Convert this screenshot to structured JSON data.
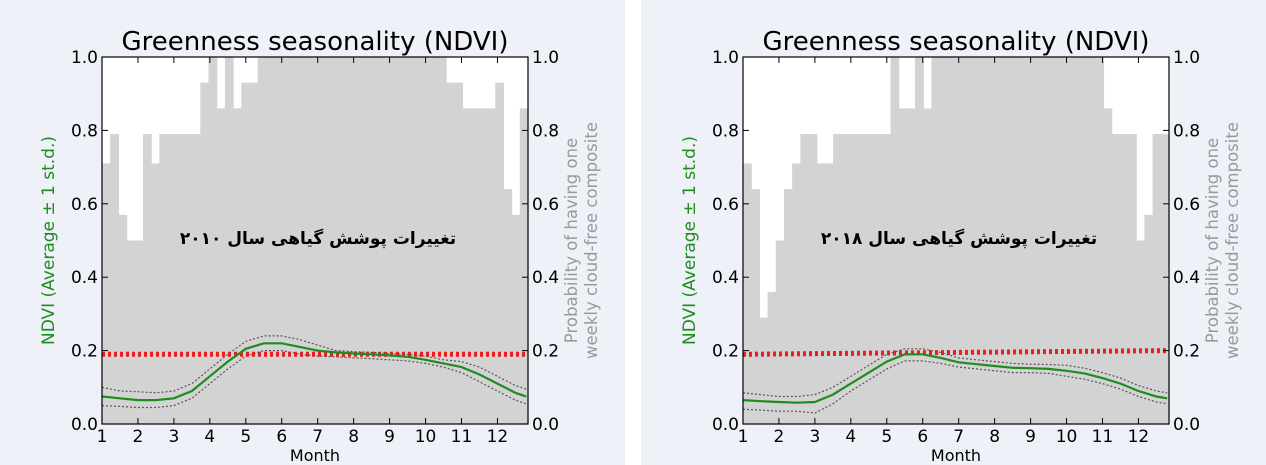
{
  "colors": {
    "page_bg": "#ffffff",
    "figure_bg": "#eef1f8",
    "cloud_bars": "#d3d3d3",
    "ndvi_line": "#1e8c1e",
    "std_band": "#555555",
    "reference_line": "#ee1c1c",
    "ndvi_axis_label": "#1e8c1e",
    "probability_axis_label": "#999999"
  },
  "chart_data": [
    {
      "type": "line",
      "title": "Greenness seasonality (NDVI)",
      "xlabel": "Month",
      "ylabel": "NDVI (Average ± 1 st.d.)",
      "ylabel_right": [
        "Probability of having one",
        "weekly cloud-free composite"
      ],
      "annotation": "تغییرات پوشش گیاهی سال ۲۰۱۰",
      "xlim": [
        1,
        12.85
      ],
      "ylim": [
        0,
        1
      ],
      "x_ticks": [
        1,
        2,
        3,
        4,
        5,
        6,
        7,
        8,
        9,
        10,
        11,
        12
      ],
      "y_ticks": [
        "0.0",
        "0.2",
        "0.4",
        "0.6",
        "0.8",
        "1.0"
      ],
      "y2_ticks": [
        "0.0",
        "0.2",
        "0.4",
        "0.6",
        "0.8",
        "1.0"
      ],
      "grid": false,
      "cloud_free_probability": [
        0.71,
        0.79,
        0.57,
        0.5,
        0.5,
        0.79,
        0.71,
        0.79,
        0.79,
        0.79,
        0.79,
        0.79,
        0.93,
        1.0,
        0.86,
        1.0,
        0.86,
        0.93,
        0.93,
        1.0,
        1.0,
        1.0,
        1.0,
        1.0,
        1.0,
        1.0,
        1.0,
        1.0,
        1.0,
        1.0,
        1.0,
        1.0,
        1.0,
        1.0,
        1.0,
        1.0,
        1.0,
        1.0,
        1.0,
        1.0,
        1.0,
        1.0,
        0.93,
        0.93,
        0.86,
        0.86,
        0.86,
        0.86,
        0.93,
        0.64,
        0.57,
        0.86
      ],
      "reference_line": 0.19,
      "series": [
        {
          "x": [
            1,
            1.5,
            2,
            2.5,
            3,
            3.5,
            4,
            4.5,
            5,
            5.5,
            6,
            6.5,
            7,
            7.5,
            8,
            8.5,
            9,
            9.5,
            10,
            10.5,
            11,
            11.5,
            12,
            12.5,
            12.8
          ],
          "values": [
            0.075,
            0.07,
            0.065,
            0.065,
            0.07,
            0.09,
            0.13,
            0.17,
            0.205,
            0.22,
            0.22,
            0.21,
            0.2,
            0.195,
            0.192,
            0.19,
            0.187,
            0.183,
            0.175,
            0.165,
            0.155,
            0.135,
            0.11,
            0.085,
            0.075
          ]
        },
        {
          "x": [
            1,
            1.5,
            2,
            2.5,
            3,
            3.5,
            4,
            4.5,
            5,
            5.5,
            6,
            6.5,
            7,
            7.5,
            8,
            8.5,
            9,
            9.5,
            10,
            10.5,
            11,
            11.5,
            12,
            12.5,
            12.8
          ],
          "values": [
            0.1,
            0.09,
            0.088,
            0.085,
            0.09,
            0.11,
            0.15,
            0.19,
            0.225,
            0.24,
            0.24,
            0.23,
            0.215,
            0.2,
            0.197,
            0.195,
            0.192,
            0.19,
            0.185,
            0.175,
            0.17,
            0.155,
            0.13,
            0.105,
            0.095
          ]
        },
        {
          "x": [
            1,
            1.5,
            2,
            2.5,
            3,
            3.5,
            4,
            4.5,
            5,
            5.5,
            6,
            6.5,
            7,
            7.5,
            8,
            8.5,
            9,
            9.5,
            10,
            10.5,
            11,
            11.5,
            12,
            12.5,
            12.8
          ],
          "values": [
            0.05,
            0.048,
            0.045,
            0.045,
            0.05,
            0.07,
            0.11,
            0.15,
            0.185,
            0.2,
            0.2,
            0.19,
            0.185,
            0.183,
            0.18,
            0.178,
            0.175,
            0.172,
            0.165,
            0.155,
            0.14,
            0.115,
            0.09,
            0.065,
            0.055
          ]
        }
      ]
    },
    {
      "type": "line",
      "title": "Greenness seasonality (NDVI)",
      "xlabel": "Month",
      "ylabel": "NDVI (Average ± 1 st.d.)",
      "ylabel_right": [
        "Probability of having one",
        "weekly cloud-free composite"
      ],
      "annotation": "تغییرات پوشش گیاهی سال ۲۰۱۸",
      "xlim": [
        1,
        12.85
      ],
      "ylim": [
        0,
        1
      ],
      "x_ticks": [
        1,
        2,
        3,
        4,
        5,
        6,
        7,
        8,
        9,
        10,
        11,
        12
      ],
      "y_ticks": [
        "0.0",
        "0.2",
        "0.4",
        "0.6",
        "0.8",
        "1.0"
      ],
      "y2_ticks": [
        "0.0",
        "0.2",
        "0.4",
        "0.6",
        "0.8",
        "1.0"
      ],
      "grid": false,
      "cloud_free_probability": [
        0.71,
        0.64,
        0.29,
        0.36,
        0.5,
        0.64,
        0.71,
        0.79,
        0.79,
        0.71,
        0.71,
        0.79,
        0.79,
        0.79,
        0.79,
        0.79,
        0.79,
        0.79,
        1.0,
        0.86,
        0.86,
        1.0,
        0.86,
        1.0,
        1.0,
        1.0,
        1.0,
        1.0,
        1.0,
        1.0,
        1.0,
        1.0,
        1.0,
        1.0,
        1.0,
        1.0,
        1.0,
        1.0,
        1.0,
        1.0,
        1.0,
        1.0,
        1.0,
        1.0,
        0.86,
        0.79,
        0.79,
        0.79,
        0.5,
        0.57,
        0.79,
        0.79
      ],
      "reference_line_start": 0.19,
      "reference_line_end": 0.2,
      "series": [
        {
          "x": [
            1,
            1.5,
            2,
            2.5,
            3,
            3.5,
            4,
            4.5,
            5,
            5.5,
            6,
            6.5,
            7,
            7.5,
            8,
            8.5,
            9,
            9.5,
            10,
            10.5,
            11,
            11.5,
            12,
            12.5,
            12.8
          ],
          "values": [
            0.065,
            0.062,
            0.06,
            0.058,
            0.06,
            0.08,
            0.11,
            0.14,
            0.17,
            0.19,
            0.19,
            0.18,
            0.168,
            0.163,
            0.158,
            0.153,
            0.152,
            0.15,
            0.145,
            0.138,
            0.125,
            0.11,
            0.09,
            0.075,
            0.07
          ]
        },
        {
          "x": [
            1,
            1.5,
            2,
            2.5,
            3,
            3.5,
            4,
            4.5,
            5,
            5.5,
            6,
            6.5,
            7,
            7.5,
            8,
            8.5,
            9,
            9.5,
            10,
            10.5,
            11,
            11.5,
            12,
            12.5,
            12.8
          ],
          "values": [
            0.085,
            0.08,
            0.075,
            0.075,
            0.08,
            0.1,
            0.13,
            0.16,
            0.19,
            0.205,
            0.205,
            0.195,
            0.18,
            0.175,
            0.17,
            0.165,
            0.163,
            0.162,
            0.16,
            0.152,
            0.14,
            0.125,
            0.105,
            0.09,
            0.085
          ]
        },
        {
          "x": [
            1,
            1.5,
            2,
            2.5,
            3,
            3.5,
            4,
            4.5,
            5,
            5.5,
            6,
            6.5,
            7,
            7.5,
            8,
            8.5,
            9,
            9.5,
            10,
            10.5,
            11,
            11.5,
            12,
            12.5,
            12.8
          ],
          "values": [
            0.04,
            0.038,
            0.035,
            0.035,
            0.03,
            0.055,
            0.09,
            0.12,
            0.15,
            0.172,
            0.172,
            0.165,
            0.155,
            0.15,
            0.145,
            0.14,
            0.14,
            0.138,
            0.13,
            0.122,
            0.11,
            0.095,
            0.075,
            0.06,
            0.055
          ]
        }
      ]
    }
  ]
}
